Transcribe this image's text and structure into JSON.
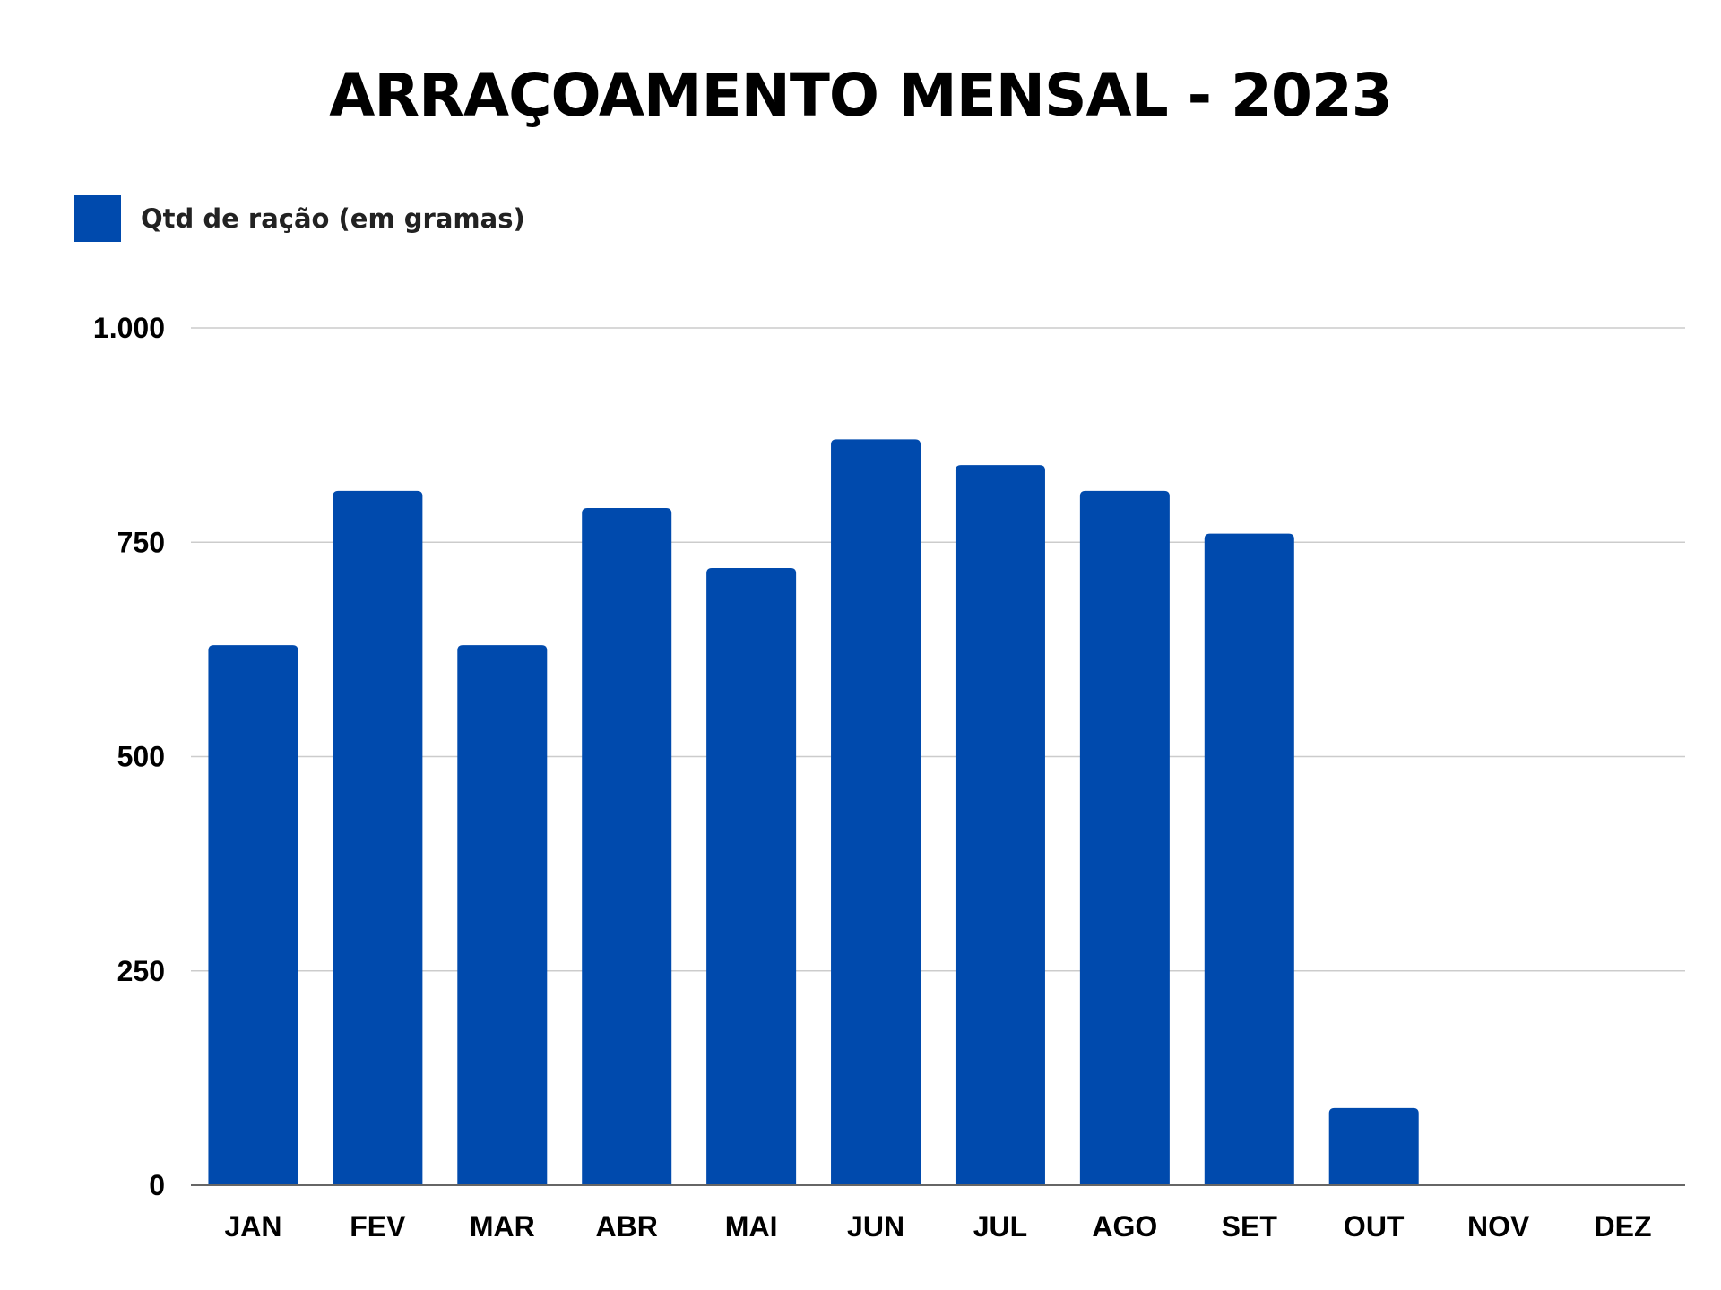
{
  "chart_data": {
    "type": "bar",
    "title": "ARRAÇOAMENTO MENSAL - 2023",
    "xlabel": "",
    "ylabel": "",
    "categories": [
      "JAN",
      "FEV",
      "MAR",
      "ABR",
      "MAI",
      "JUN",
      "JUL",
      "AGO",
      "SET",
      "OUT",
      "NOV",
      "DEZ"
    ],
    "series": [
      {
        "name": "Qtd de ração (em gramas)",
        "color": "#004AAD",
        "values": [
          630,
          810,
          630,
          790,
          720,
          870,
          840,
          810,
          760,
          90,
          0,
          0
        ]
      }
    ],
    "ylim": [
      0,
      1000
    ],
    "yticks": [
      0,
      250,
      500,
      750,
      1000
    ],
    "ytick_labels": [
      "0",
      "250",
      "500",
      "750",
      "1.000"
    ],
    "grid": true,
    "legend_position": "top-left",
    "colors": {
      "bar": "#004AAD",
      "grid": "#cccccc",
      "axis": "#666666"
    }
  }
}
